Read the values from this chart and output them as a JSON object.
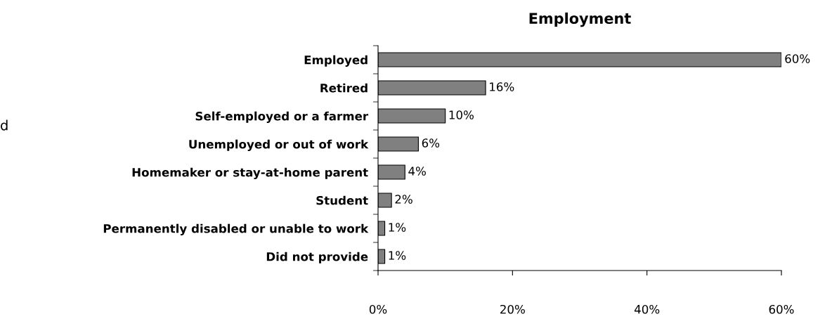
{
  "chart_data": {
    "type": "bar",
    "orientation": "horizontal",
    "title": "Employment",
    "categories": [
      "Employed",
      "Retired",
      "Self-employed or a farmer",
      "Unemployed or out of work",
      "Homemaker or stay-at-home parent",
      "Student",
      "Permanently disabled or unable to work",
      "Did not provide"
    ],
    "values": [
      60,
      16,
      10,
      6,
      4,
      2,
      1,
      1
    ],
    "value_labels": [
      "60%",
      "16%",
      "10%",
      "6%",
      "4%",
      "2%",
      "1%",
      "1%"
    ],
    "color": "#808080",
    "xlim": [
      0,
      60
    ],
    "xticks": [
      {
        "value": 0,
        "label": "0%"
      },
      {
        "value": 20,
        "label": "20%"
      },
      {
        "value": 40,
        "label": "40%"
      },
      {
        "value": 60,
        "label": "60%"
      }
    ],
    "grid": false,
    "legend": false,
    "annotations": [
      "d"
    ]
  }
}
